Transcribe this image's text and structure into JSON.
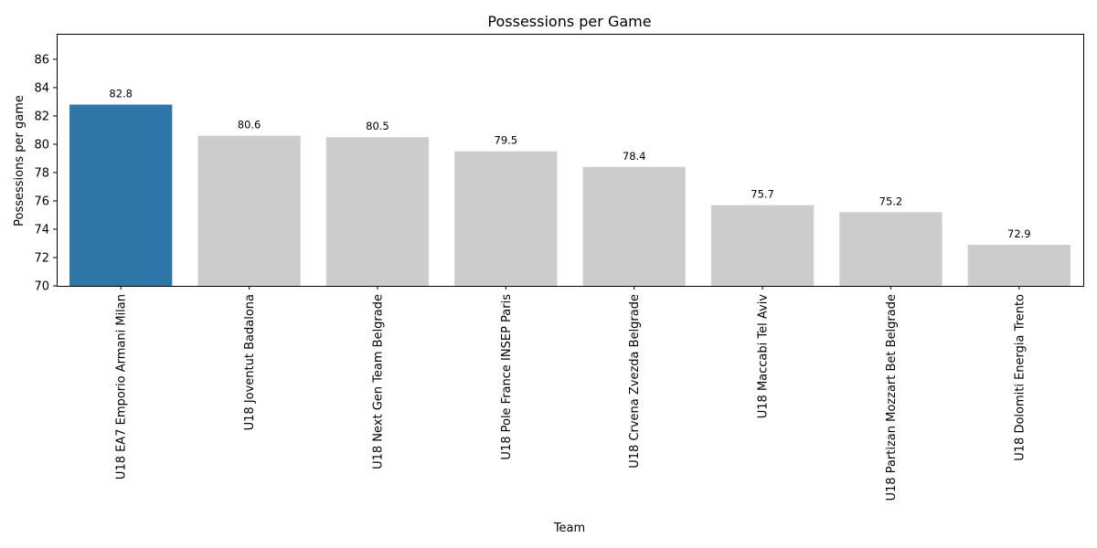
{
  "chart_data": {
    "type": "bar",
    "title": "Possessions per Game",
    "xlabel": "Team",
    "ylabel": "Possessions per game",
    "ylim": [
      70,
      87.8
    ],
    "yticks": [
      70,
      72,
      74,
      76,
      78,
      80,
      82,
      84,
      86
    ],
    "grid": false,
    "categories": [
      "U18 EA7 Emporio Armani Milan",
      "U18 Joventut Badalona",
      "U18 Next Gen Team Belgrade",
      "U18 Pole France INSEP Paris",
      "U18 Crvena Zvezda Belgrade",
      "U18 Maccabi Tel Aviv",
      "U18 Partizan Mozzart Bet Belgrade",
      "U18 Dolomiti Energia Trento"
    ],
    "values": [
      82.8,
      80.6,
      80.5,
      79.5,
      78.4,
      75.7,
      75.2,
      72.9
    ],
    "data_labels": [
      "82.8",
      "80.6",
      "80.5",
      "79.5",
      "78.4",
      "75.7",
      "75.2",
      "72.9"
    ],
    "highlight_index": 0,
    "colors": {
      "highlight": "#2e75a8",
      "default": "#cccccc"
    }
  }
}
